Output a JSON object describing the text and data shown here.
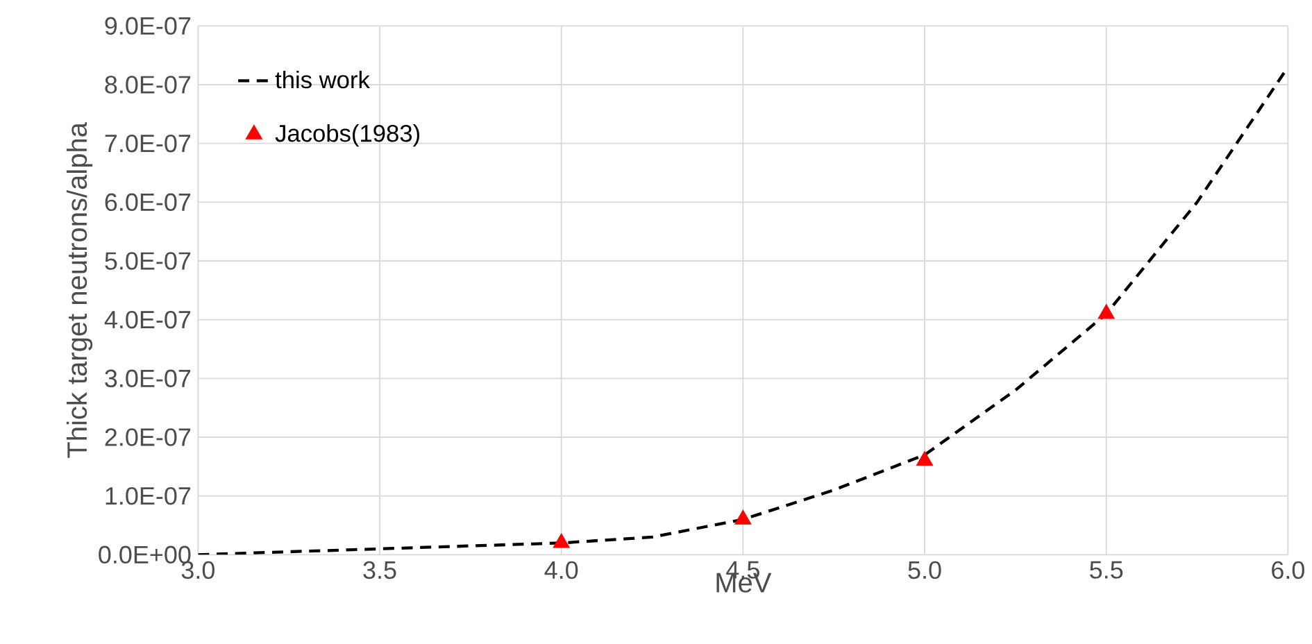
{
  "chart_data": {
    "type": "line",
    "xlabel": "MeV",
    "ylabel": "Thick target neutrons/alpha",
    "xlim": [
      3.0,
      6.0
    ],
    "ylim": [
      0,
      9e-07
    ],
    "xticks": [
      {
        "value": 3.0,
        "label": "3.0"
      },
      {
        "value": 3.5,
        "label": "3.5"
      },
      {
        "value": 4.0,
        "label": "4.0"
      },
      {
        "value": 4.5,
        "label": "4.5"
      },
      {
        "value": 5.0,
        "label": "5.0"
      },
      {
        "value": 5.5,
        "label": "5.5"
      },
      {
        "value": 6.0,
        "label": "6.0"
      }
    ],
    "yticks": [
      {
        "value": 0,
        "label": "0.0E+00"
      },
      {
        "value": 1e-07,
        "label": "1.0E-07"
      },
      {
        "value": 2e-07,
        "label": "2.0E-07"
      },
      {
        "value": 3e-07,
        "label": "3.0E-07"
      },
      {
        "value": 4e-07,
        "label": "4.0E-07"
      },
      {
        "value": 5e-07,
        "label": "5.0E-07"
      },
      {
        "value": 6e-07,
        "label": "6.0E-07"
      },
      {
        "value": 7e-07,
        "label": "7.0E-07"
      },
      {
        "value": 8e-07,
        "label": "8.0E-07"
      },
      {
        "value": 9e-07,
        "label": "9.0E-07"
      }
    ],
    "grid": true,
    "legend": "top left",
    "series": [
      {
        "name": "this work",
        "color": "#000000",
        "line_style": "dashed",
        "marker": "none",
        "x": [
          3.0,
          3.5,
          4.0,
          4.25,
          4.5,
          4.75,
          5.0,
          5.25,
          5.5,
          5.75,
          6.0
        ],
        "values": [
          0,
          1e-08,
          2e-08,
          3e-08,
          6e-08,
          1.1e-07,
          1.7e-07,
          2.8e-07,
          4.1e-07,
          6e-07,
          8.3e-07
        ]
      },
      {
        "name": "Jacobs(1983)",
        "type": "scatter",
        "color": "#ff0000",
        "marker": "triangle",
        "x": [
          4.0,
          4.5,
          5.0,
          5.5
        ],
        "values": [
          2e-08,
          6e-08,
          1.6e-07,
          4.1e-07
        ]
      }
    ]
  }
}
